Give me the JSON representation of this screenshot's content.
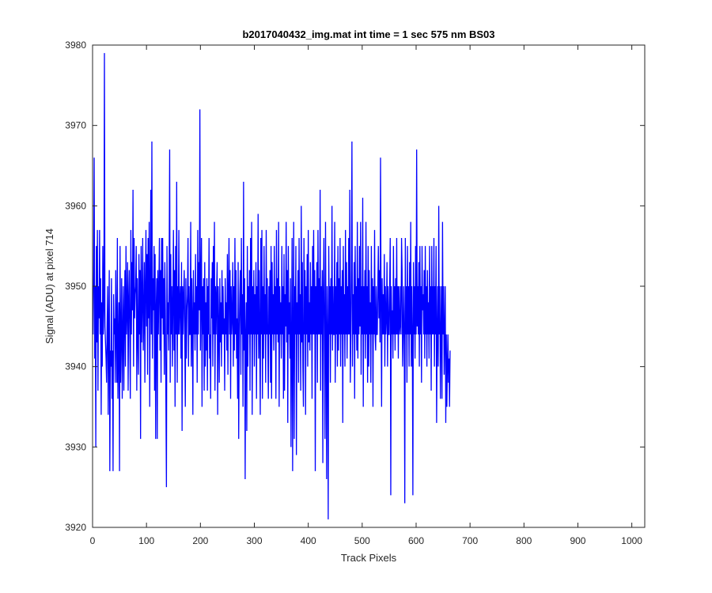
{
  "chart_data": {
    "type": "line",
    "title": "b2017040432_img.mat int time = 1 sec  575 nm BS03",
    "xlabel": "Track Pixels",
    "ylabel": "Signal (ADU) at pixel 714",
    "xlim": [
      0,
      1024
    ],
    "ylim": [
      3920,
      3980
    ],
    "xticks": [
      0,
      100,
      200,
      300,
      400,
      500,
      600,
      700,
      800,
      900,
      1000
    ],
    "yticks": [
      3920,
      3930,
      3940,
      3950,
      3960,
      3970,
      3980
    ],
    "grid": false,
    "legend": "none",
    "series": [
      {
        "color": "#0000ff",
        "x_start": 1,
        "x_step": 1,
        "values": [
          3944,
          3952,
          3966,
          3941,
          3950,
          3930,
          3955,
          3943,
          3957,
          3937,
          3950,
          3946,
          3957,
          3944,
          3951,
          3934,
          3948,
          3940,
          3955,
          3944,
          3947,
          3979,
          3945,
          3943,
          3941,
          3938,
          3945,
          3950,
          3934,
          3945,
          3952,
          3927,
          3942,
          3940,
          3951,
          3936,
          3942,
          3927,
          3949,
          3944,
          3946,
          3938,
          3952,
          3944,
          3938,
          3956,
          3936,
          3943,
          3948,
          3927,
          3955,
          3938,
          3944,
          3951,
          3936,
          3944,
          3950,
          3937,
          3946,
          3952,
          3940,
          3955,
          3944,
          3947,
          3953,
          3937,
          3948,
          3952,
          3944,
          3936,
          3957,
          3944,
          3953,
          3947,
          3962,
          3940,
          3956,
          3946,
          3949,
          3950,
          3955,
          3937,
          3951,
          3944,
          3939,
          3954,
          3944,
          3952,
          3931,
          3955,
          3943,
          3948,
          3956,
          3942,
          3946,
          3953,
          3938,
          3950,
          3957,
          3945,
          3954,
          3939,
          3956,
          3946,
          3958,
          3935,
          3950,
          3962,
          3944,
          3968,
          3941,
          3951,
          3947,
          3955,
          3937,
          3954,
          3931,
          3947,
          3951,
          3931,
          3952,
          3944,
          3950,
          3956,
          3942,
          3952,
          3938,
          3956,
          3946,
          3956,
          3944,
          3951,
          3939,
          3953,
          3947,
          3936,
          3925,
          3955,
          3944,
          3948,
          3942,
          3952,
          3967,
          3938,
          3954,
          3944,
          3950,
          3940,
          3948,
          3957,
          3942,
          3952,
          3935,
          3955,
          3944,
          3963,
          3938,
          3950,
          3944,
          3957,
          3944,
          3948,
          3950,
          3941,
          3953,
          3932,
          3950,
          3944,
          3949,
          3952,
          3944,
          3935,
          3951,
          3941,
          3947,
          3949,
          3956,
          3940,
          3950,
          3944,
          3944,
          3958,
          3940,
          3951,
          3946,
          3934,
          3952,
          3944,
          3948,
          3942,
          3954,
          3944,
          3950,
          3938,
          3957,
          3944,
          3953,
          3947,
          3972,
          3942,
          3949,
          3956,
          3935,
          3950,
          3944,
          3951,
          3937,
          3953,
          3940,
          3948,
          3942,
          3951,
          3937,
          3950,
          3944,
          3956,
          3941,
          3944,
          3936,
          3951,
          3946,
          3953,
          3940,
          3955,
          3944,
          3958,
          3937,
          3950,
          3944,
          3949,
          3953,
          3934,
          3950,
          3945,
          3938,
          3951,
          3943,
          3948,
          3940,
          3952,
          3944,
          3950,
          3944,
          3946,
          3937,
          3951,
          3944,
          3948,
          3942,
          3954,
          3939,
          3949,
          3956,
          3944,
          3952,
          3936,
          3950,
          3944,
          3946,
          3953,
          3940,
          3950,
          3942,
          3956,
          3944,
          3952,
          3941,
          3946,
          3936,
          3953,
          3931,
          3944,
          3949,
          3952,
          3939,
          3956,
          3944,
          3949,
          3935,
          3963,
          3942,
          3951,
          3926,
          3944,
          3948,
          3932,
          3955,
          3940,
          3950,
          3944,
          3952,
          3937,
          3956,
          3944,
          3958,
          3934,
          3950,
          3944,
          3952,
          3940,
          3949,
          3944,
          3953,
          3936,
          3950,
          3944,
          3959,
          3941,
          3952,
          3944,
          3934,
          3956,
          3944,
          3957,
          3936,
          3950,
          3941,
          3955,
          3944,
          3949,
          3938,
          3957,
          3944,
          3951,
          3943,
          3936,
          3950,
          3944,
          3952,
          3938,
          3955,
          3936,
          3953,
          3944,
          3949,
          3942,
          3955,
          3944,
          3950,
          3936,
          3957,
          3944,
          3951,
          3943,
          3958,
          3935,
          3950,
          3944,
          3948,
          3941,
          3955,
          3944,
          3950,
          3936,
          3954,
          3937,
          3949,
          3945,
          3958,
          3943,
          3952,
          3933,
          3955,
          3944,
          3948,
          3941,
          3951,
          3930,
          3943,
          3956,
          3927,
          3944,
          3958,
          3931,
          3950,
          3944,
          3955,
          3929,
          3948,
          3944,
          3952,
          3938,
          3956,
          3944,
          3949,
          3937,
          3960,
          3943,
          3953,
          3940,
          3935,
          3956,
          3944,
          3952,
          3934,
          3950,
          3944,
          3954,
          3940,
          3957,
          3943,
          3948,
          3942,
          3953,
          3944,
          3950,
          3936,
          3955,
          3944,
          3957,
          3944,
          3952,
          3927,
          3950,
          3944,
          3953,
          3938,
          3957,
          3944,
          3951,
          3944,
          3962,
          3937,
          3950,
          3944,
          3952,
          3928,
          3949,
          3956,
          3944,
          3931,
          3958,
          3944,
          3926,
          3950,
          3944,
          3921,
          3955,
          3944,
          3950,
          3938,
          3951,
          3944,
          3960,
          3942,
          3950,
          3944,
          3944,
          3958,
          3938,
          3950,
          3944,
          3953,
          3940,
          3955,
          3942,
          3951,
          3944,
          3956,
          3940,
          3950,
          3944,
          3952,
          3933,
          3955,
          3944,
          3949,
          3940,
          3957,
          3944,
          3953,
          3941,
          3950,
          3944,
          3956,
          3944,
          3962,
          3938,
          3944,
          3952,
          3968,
          3940,
          3949,
          3944,
          3953,
          3936,
          3955,
          3944,
          3950,
          3942,
          3958,
          3941,
          3951,
          3944,
          3955,
          3945,
          3958,
          3939,
          3950,
          3944,
          3961,
          3935,
          3950,
          3944,
          3952,
          3941,
          3958,
          3944,
          3950,
          3938,
          3955,
          3940,
          3952,
          3944,
          3948,
          3938,
          3955,
          3944,
          3951,
          3935,
          3950,
          3944,
          3957,
          3944,
          3942,
          3950,
          3944,
          3944,
          3950,
          3955,
          3946,
          3952,
          3943,
          3966,
          3948,
          3935,
          3951,
          3944,
          3949,
          3944,
          3954,
          3940,
          3950,
          3944,
          3946,
          3953,
          3940,
          3950,
          3944,
          3944,
          3950,
          3956,
          3924,
          3950,
          3944,
          3947,
          3941,
          3955,
          3944,
          3950,
          3942,
          3951,
          3944,
          3956,
          3944,
          3950,
          3941,
          3950,
          3944,
          3945,
          3950,
          3944,
          3956,
          3952,
          3940,
          3944,
          3950,
          3944,
          3923,
          3956,
          3944,
          3950,
          3938,
          3955,
          3944,
          3950,
          3940,
          3953,
          3944,
          3958,
          3940,
          3950,
          3944,
          3924,
          3953,
          3944,
          3950,
          3941,
          3955,
          3944,
          3967,
          3945,
          3950,
          3944,
          3953,
          3940,
          3955,
          3944,
          3950,
          3938,
          3955,
          3947,
          3949,
          3944,
          3952,
          3941,
          3955,
          3944,
          3950,
          3940,
          3952,
          3944,
          3948,
          3941,
          3955,
          3944,
          3950,
          3937,
          3955,
          3944,
          3950,
          3944,
          3956,
          3940,
          3950,
          3944,
          3955,
          3933,
          3944,
          3950,
          3940,
          3960,
          3944,
          3950,
          3936,
          3944,
          3950,
          3936,
          3958,
          3944,
          3950,
          3939,
          3944,
          3950,
          3933,
          3944,
          3935,
          3940,
          3944,
          3938,
          3941,
          3935,
          3942
        ]
      }
    ]
  }
}
